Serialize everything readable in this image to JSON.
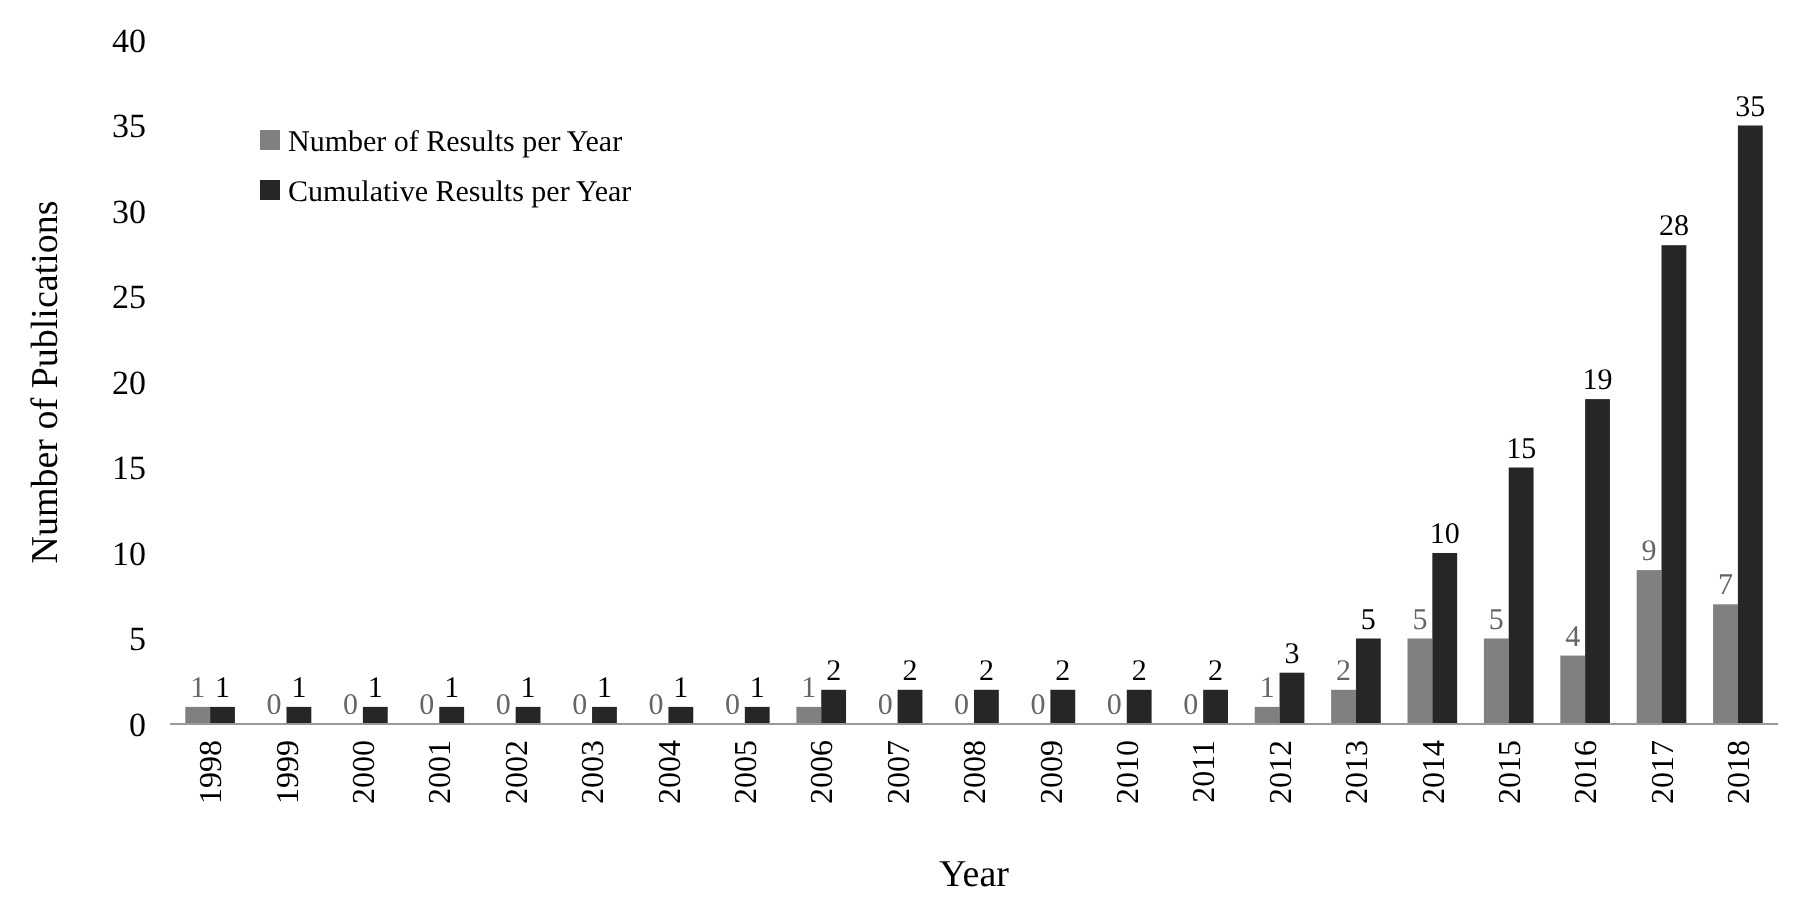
{
  "chart_data": {
    "type": "bar",
    "xlabel": "Year",
    "ylabel": "Number of Publications",
    "categories": [
      "1998",
      "1999",
      "2000",
      "2001",
      "2002",
      "2003",
      "2004",
      "2005",
      "2006",
      "2007",
      "2008",
      "2009",
      "2010",
      "2011",
      "2012",
      "2013",
      "2014",
      "2015",
      "2016",
      "2017",
      "2018"
    ],
    "series": [
      {
        "name": "Number of Results per Year",
        "color": "#808080",
        "values": [
          1,
          0,
          0,
          0,
          0,
          0,
          0,
          0,
          1,
          0,
          0,
          0,
          0,
          0,
          1,
          2,
          5,
          5,
          4,
          9,
          7
        ]
      },
      {
        "name": "Cumulative Results per Year",
        "color": "#262626",
        "values": [
          1,
          1,
          1,
          1,
          1,
          1,
          1,
          1,
          2,
          2,
          2,
          2,
          2,
          2,
          3,
          5,
          10,
          15,
          19,
          28,
          35
        ]
      }
    ],
    "ylim": [
      0,
      40
    ],
    "yticks": [
      0,
      5,
      10,
      15,
      20,
      25,
      30,
      35,
      40
    ],
    "grid": false,
    "legend": "top left",
    "data_labels": true
  }
}
